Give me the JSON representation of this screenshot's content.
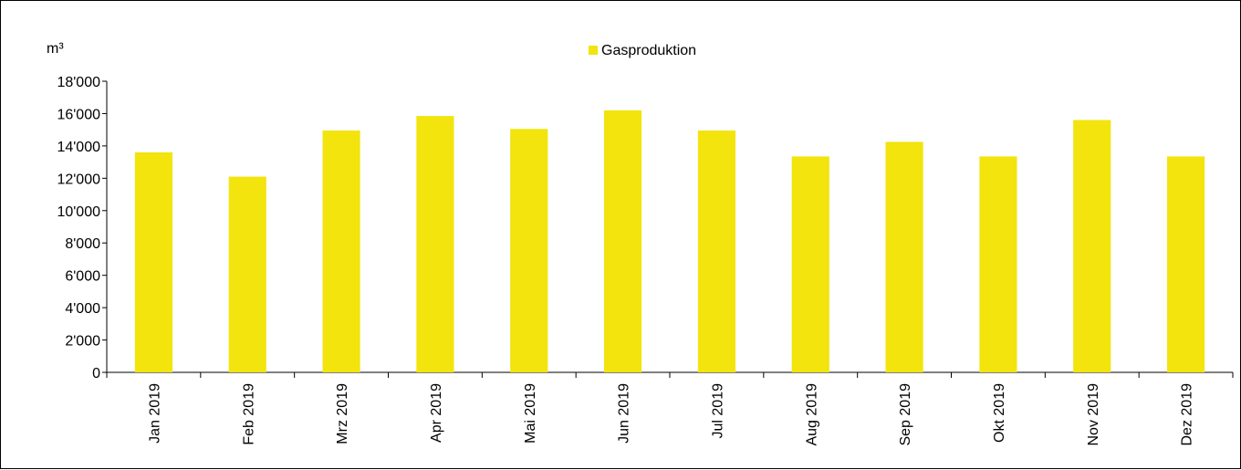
{
  "chart_data": {
    "type": "bar",
    "unit_label": "m³",
    "categories": [
      "Jan 2019",
      "Feb 2019",
      "Mrz 2019",
      "Apr 2019",
      "Mai 2019",
      "Jun 2019",
      "Jul 2019",
      "Aug 2019",
      "Sep 2019",
      "Okt 2019",
      "Nov 2019",
      "Dez 2019"
    ],
    "series": [
      {
        "name": "Gasproduktion",
        "color": "#F2E40C",
        "values": [
          13600,
          12100,
          14950,
          15850,
          15050,
          16200,
          14950,
          13350,
          14250,
          13350,
          15600,
          13350
        ]
      }
    ],
    "ylim": [
      0,
      18000
    ],
    "yticks": [
      0,
      2000,
      4000,
      6000,
      8000,
      10000,
      12000,
      14000,
      16000,
      18000
    ],
    "ytick_labels": [
      "0",
      "2'000",
      "4'000",
      "6'000",
      "8'000",
      "10'000",
      "12'000",
      "14'000",
      "16'000",
      "18'000"
    ],
    "grid": false,
    "legend_position": "top-center"
  }
}
